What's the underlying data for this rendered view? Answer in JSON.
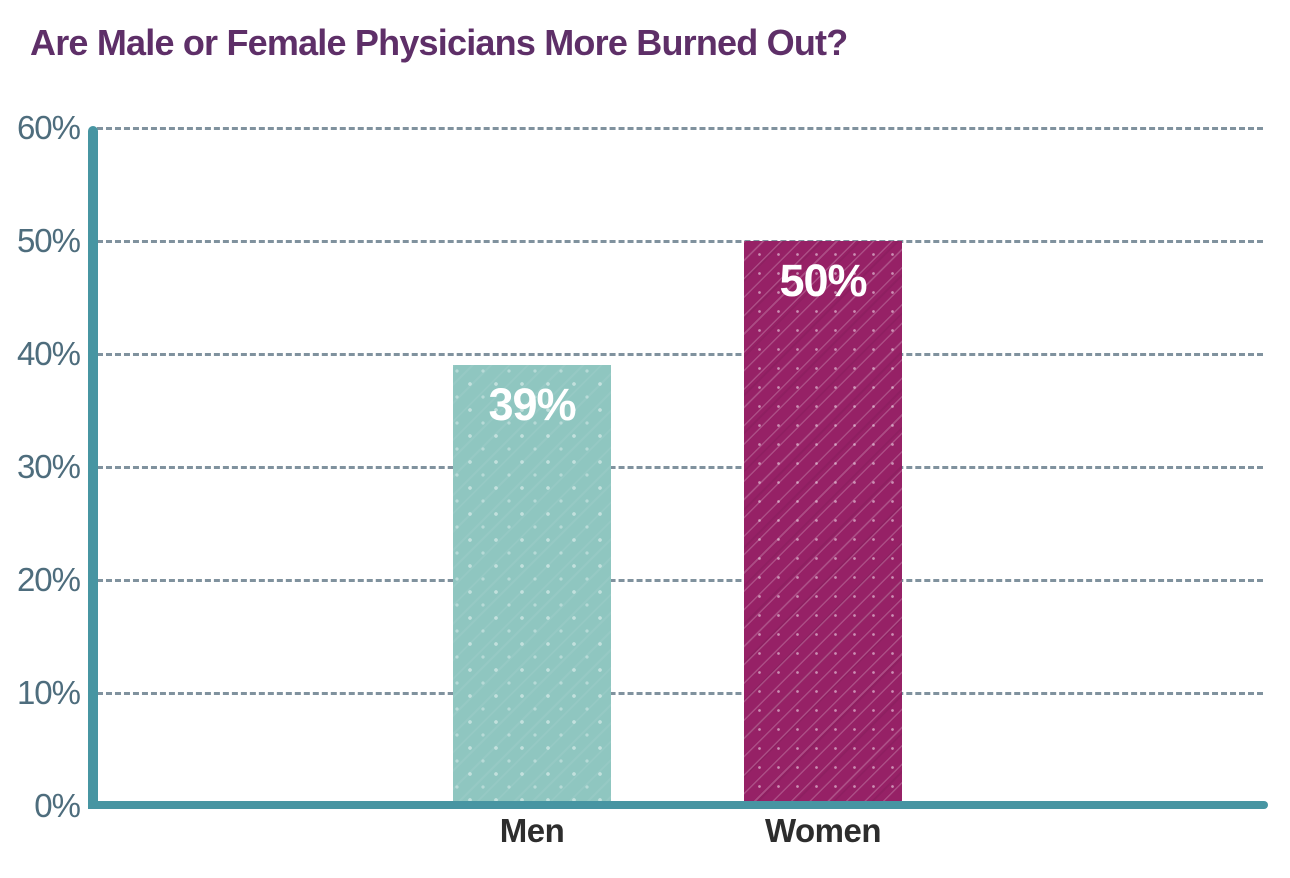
{
  "chart_data": {
    "type": "bar",
    "title": "Are Male or Female Physicians More Burned Out?",
    "categories": [
      "Men",
      "Women"
    ],
    "values": [
      39,
      50
    ],
    "value_labels": [
      "39%",
      "50%"
    ],
    "xlabel": "",
    "ylabel": "",
    "ylim": [
      0,
      60
    ],
    "ytick_step": 10,
    "yticks": [
      "0%",
      "10%",
      "20%",
      "30%",
      "40%",
      "50%",
      "60%"
    ],
    "grid": "horizontal dashed gridlines on",
    "legend_position": "none",
    "bar_patterns": [
      "dots",
      "diagonal-dashes"
    ],
    "colors": {
      "title": "#5e2f68",
      "bar_men": "#8fc6c0",
      "bar_women": "#962166",
      "axis": "#4795a2",
      "gridline": "#80929e",
      "tick_label": "#4e6d7d",
      "category_label": "#2d2d2d",
      "value_label": "#ffffff",
      "background": "#ffffff"
    }
  }
}
